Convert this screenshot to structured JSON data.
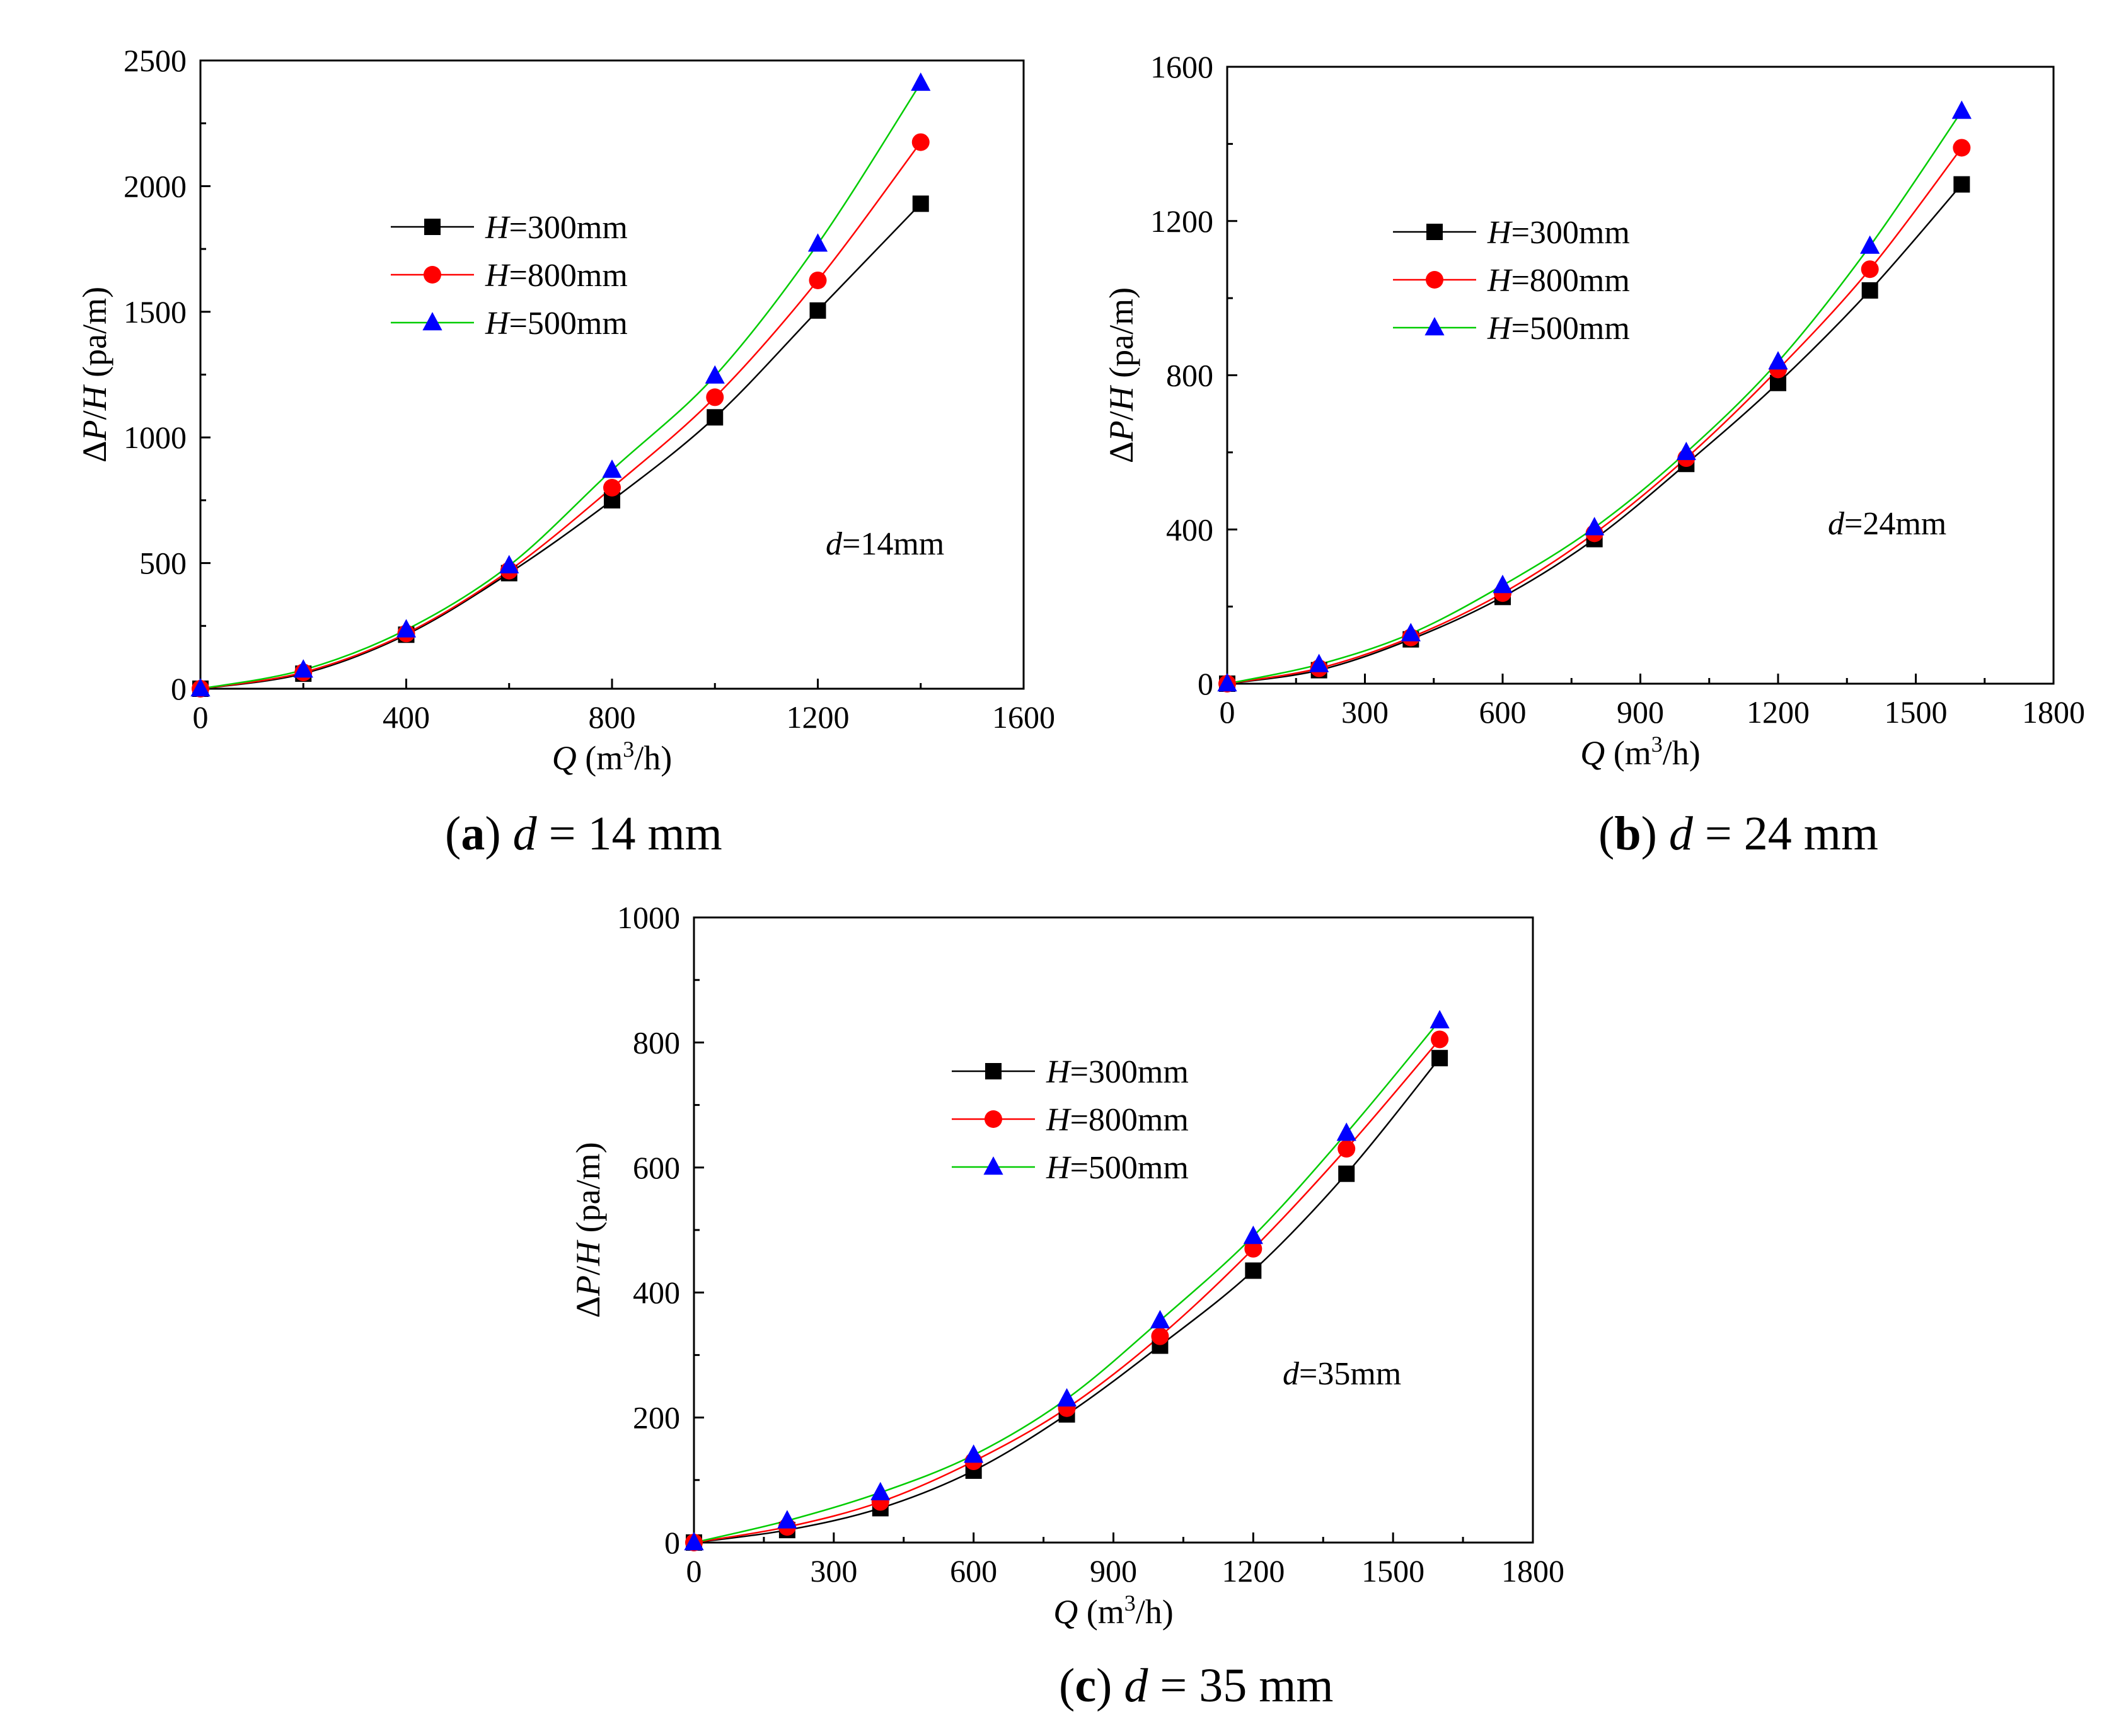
{
  "colors": {
    "series_300": "#000000",
    "series_800": "#ff0000",
    "series_500": "#0000ff",
    "line_300": "#000000",
    "line_800": "#ff0000",
    "line_500": "#00cc00"
  },
  "chart_data": [
    {
      "type": "line",
      "panel": "a",
      "caption": {
        "letter": "a",
        "variable": "d",
        "value": "= 14 mm"
      },
      "xlabel": {
        "var": "Q",
        "unit_prefix": " (m",
        "sup": "3",
        "unit_suffix": "/h)"
      },
      "ylabel": {
        "delta": "Δ",
        "var1": "P",
        "slash": "/",
        "var2": "H",
        "unit": " (pa/m)"
      },
      "xlim": [
        0,
        1600
      ],
      "ylim": [
        0,
        2500
      ],
      "xticks": [
        0,
        400,
        800,
        1200,
        1600
      ],
      "yticks": [
        0,
        500,
        1000,
        1500,
        2000,
        2500
      ],
      "annotation": {
        "var": "d",
        "text": "=14mm"
      },
      "legend_position": "upper-left",
      "series": [
        {
          "name": "H=300mm",
          "legend_var": "H",
          "legend_value": "=300mm",
          "marker": "square",
          "color_key": "series_300",
          "line_key": "line_300",
          "x": [
            0,
            200,
            400,
            600,
            800,
            1000,
            1200,
            1400
          ],
          "y": [
            0,
            60,
            215,
            460,
            750,
            1080,
            1505,
            1930
          ]
        },
        {
          "name": "H=800mm",
          "legend_var": "H",
          "legend_value": "=800mm",
          "marker": "circle",
          "color_key": "series_800",
          "line_key": "line_800",
          "x": [
            0,
            200,
            400,
            600,
            800,
            1000,
            1200,
            1400
          ],
          "y": [
            0,
            65,
            220,
            470,
            800,
            1160,
            1625,
            2175
          ]
        },
        {
          "name": "H=500mm",
          "legend_var": "H",
          "legend_value": "=500mm",
          "marker": "triangle",
          "color_key": "series_500",
          "line_key": "line_500",
          "x": [
            0,
            200,
            400,
            600,
            800,
            1000,
            1200,
            1400
          ],
          "y": [
            0,
            75,
            235,
            490,
            870,
            1245,
            1770,
            2410
          ]
        }
      ]
    },
    {
      "type": "line",
      "panel": "b",
      "caption": {
        "letter": "b",
        "variable": "d",
        "value": "= 24 mm"
      },
      "xlabel": {
        "var": "Q",
        "unit_prefix": " (m",
        "sup": "3",
        "unit_suffix": "/h)"
      },
      "ylabel": {
        "delta": "Δ",
        "var1": "P",
        "slash": "/",
        "var2": "H",
        "unit": " (pa/m)"
      },
      "xlim": [
        0,
        1800
      ],
      "ylim": [
        0,
        1600
      ],
      "xticks": [
        0,
        300,
        600,
        900,
        1200,
        1500,
        1800
      ],
      "yticks": [
        0,
        400,
        800,
        1200,
        1600
      ],
      "annotation": {
        "var": "d",
        "text": "=24mm"
      },
      "legend_position": "upper-left",
      "series": [
        {
          "name": "H=300mm",
          "legend_var": "H",
          "legend_value": "=300mm",
          "marker": "square",
          "color_key": "series_300",
          "line_key": "line_300",
          "x": [
            0,
            200,
            400,
            600,
            800,
            1000,
            1200,
            1400,
            1600
          ],
          "y": [
            0,
            35,
            115,
            225,
            375,
            570,
            780,
            1020,
            1295
          ]
        },
        {
          "name": "H=800mm",
          "legend_var": "H",
          "legend_value": "=800mm",
          "marker": "circle",
          "color_key": "series_800",
          "line_key": "line_800",
          "x": [
            0,
            200,
            400,
            600,
            800,
            1000,
            1200,
            1400,
            1600
          ],
          "y": [
            0,
            40,
            120,
            235,
            390,
            585,
            815,
            1075,
            1390
          ]
        },
        {
          "name": "H=500mm",
          "legend_var": "H",
          "legend_value": "=500mm",
          "marker": "triangle",
          "color_key": "series_500",
          "line_key": "line_500",
          "x": [
            0,
            200,
            400,
            600,
            800,
            1000,
            1200,
            1400,
            1600
          ],
          "y": [
            0,
            50,
            130,
            255,
            405,
            600,
            835,
            1135,
            1485
          ]
        }
      ]
    },
    {
      "type": "line",
      "panel": "c",
      "caption": {
        "letter": "c",
        "variable": "d",
        "value": "= 35 mm"
      },
      "xlabel": {
        "var": "Q",
        "unit_prefix": " (m",
        "sup": "3",
        "unit_suffix": "/h)"
      },
      "ylabel": {
        "delta": "Δ",
        "var1": "P",
        "slash": "/",
        "var2": "H",
        "unit": " (pa/m)"
      },
      "xlim": [
        0,
        1800
      ],
      "ylim": [
        0,
        1000
      ],
      "xticks": [
        0,
        300,
        600,
        900,
        1200,
        1500,
        1800
      ],
      "yticks": [
        0,
        200,
        400,
        600,
        800,
        1000
      ],
      "annotation": {
        "var": "d",
        "text": "=35mm"
      },
      "legend_position": "upper-left",
      "series": [
        {
          "name": "H=300mm",
          "legend_var": "H",
          "legend_value": "=300mm",
          "marker": "square",
          "color_key": "series_300",
          "line_key": "line_300",
          "x": [
            0,
            200,
            400,
            600,
            800,
            1000,
            1200,
            1400,
            1600
          ],
          "y": [
            0,
            20,
            55,
            115,
            205,
            315,
            435,
            590,
            775
          ]
        },
        {
          "name": "H=800mm",
          "legend_var": "H",
          "legend_value": "=800mm",
          "marker": "circle",
          "color_key": "series_800",
          "line_key": "line_800",
          "x": [
            0,
            200,
            400,
            600,
            800,
            1000,
            1200,
            1400,
            1600
          ],
          "y": [
            0,
            25,
            65,
            130,
            215,
            330,
            470,
            630,
            805
          ]
        },
        {
          "name": "H=500mm",
          "legend_var": "H",
          "legend_value": "=500mm",
          "marker": "triangle",
          "color_key": "series_500",
          "line_key": "line_500",
          "x": [
            0,
            200,
            400,
            600,
            800,
            1000,
            1200,
            1400,
            1600
          ],
          "y": [
            0,
            35,
            80,
            140,
            230,
            355,
            490,
            655,
            835
          ]
        }
      ]
    }
  ]
}
